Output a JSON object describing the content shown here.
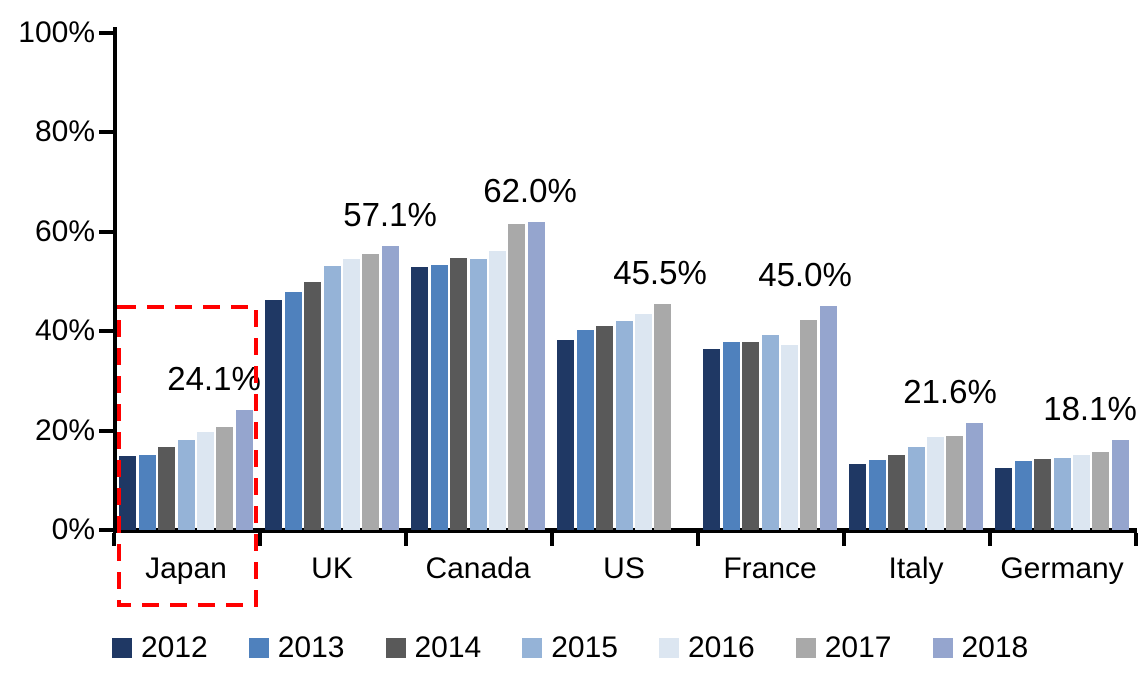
{
  "chart_data": {
    "type": "bar",
    "title": "",
    "categories": [
      "Japan",
      "UK",
      "Canada",
      "US",
      "France",
      "Italy",
      "Germany"
    ],
    "series": [
      {
        "name": "2012",
        "color": "#1F3864",
        "values": [
          14.8,
          46.3,
          53.0,
          38.3,
          36.5,
          13.3,
          12.5
        ]
      },
      {
        "name": "2013",
        "color": "#4F81BD",
        "values": [
          15.0,
          47.8,
          53.4,
          40.2,
          37.8,
          14.0,
          13.8
        ]
      },
      {
        "name": "2014",
        "color": "#595959",
        "values": [
          16.7,
          49.9,
          54.8,
          41.0,
          37.8,
          15.1,
          14.2
        ]
      },
      {
        "name": "2015",
        "color": "#95B3D7",
        "values": [
          18.2,
          53.2,
          54.6,
          42.1,
          39.3,
          16.6,
          14.5
        ]
      },
      {
        "name": "2016",
        "color": "#DCE6F1",
        "values": [
          19.8,
          54.5,
          56.1,
          43.5,
          37.3,
          18.7,
          15.1
        ]
      },
      {
        "name": "2017",
        "color": "#A9A9A9",
        "values": [
          20.8,
          55.6,
          61.5,
          45.5,
          42.3,
          18.9,
          15.7
        ]
      },
      {
        "name": "2018",
        "color": "#95A5CE",
        "values": [
          24.1,
          57.1,
          62.0,
          null,
          45.0,
          21.6,
          18.1
        ]
      }
    ],
    "annotations": [
      {
        "category": "Japan",
        "text": "24.1%",
        "value": 24.1
      },
      {
        "category": "UK",
        "text": "57.1%",
        "value": 57.1
      },
      {
        "category": "Canada",
        "text": "62.0%",
        "value": 62.0
      },
      {
        "category": "US",
        "text": "45.5%",
        "value": 45.5
      },
      {
        "category": "France",
        "text": "45.0%",
        "value": 45.0
      },
      {
        "category": "Italy",
        "text": "21.6%",
        "value": 21.6
      },
      {
        "category": "Germany",
        "text": "18.1%",
        "value": 18.1
      }
    ],
    "ylim": [
      0,
      100
    ],
    "ytick_step": 20,
    "ytick_labels": [
      "0%",
      "20%",
      "40%",
      "60%",
      "80%",
      "100%"
    ],
    "grid": false,
    "legend_position": "bottom",
    "highlight": {
      "category": "Japan",
      "shape": "dashed-rectangle",
      "color": "#FF0000"
    }
  }
}
